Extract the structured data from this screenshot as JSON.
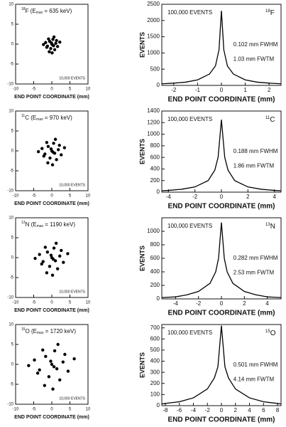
{
  "chart_data": [
    {
      "type": "scatter",
      "title_mass": "18",
      "title_element": "F (E",
      "title_sub": "max",
      "title_rest": " = 635 keV)",
      "events_label": "10,000 EVENTS",
      "xlabel": "END POINT COORDINATE (mm)",
      "x": [
        0,
        0.5,
        -0.6,
        1.1,
        -1.2,
        0.3,
        -0.3,
        1.6,
        -1.7,
        0.8,
        -0.9,
        0.2,
        -0.1,
        1.3,
        -1.4,
        2.2,
        -2.3,
        0.6,
        -0.7,
        0.1
      ],
      "y": [
        0,
        -0.4,
        0.7,
        0.2,
        -0.5,
        1.2,
        -1.1,
        -0.6,
        0.4,
        -1.4,
        1.3,
        -0.2,
        0.3,
        0.9,
        -0.8,
        0.5,
        -0.1,
        1.8,
        -1.9,
        -2.2
      ],
      "xlim": [
        -10,
        10
      ],
      "ylim": [
        -10,
        10
      ],
      "xticks": [
        -10,
        -5,
        0,
        5,
        10
      ],
      "yticks": [
        -10,
        -5,
        0,
        5,
        10
      ],
      "color": "#000000"
    },
    {
      "type": "line",
      "events_label": "100,000 EVENTS",
      "isotope_mass": "18",
      "isotope_element": "F",
      "fwhm": "0.102 mm FWHM",
      "fwtm": "1.03 mm FWTM",
      "xlabel": "END POINT COORDINATE (mm)",
      "ylabel": "EVENTS",
      "x": [
        -2.5,
        -2,
        -1.5,
        -1,
        -0.5,
        -0.25,
        -0.1,
        0,
        0.1,
        0.25,
        0.5,
        1,
        1.5,
        2,
        2.5
      ],
      "values": [
        50,
        70,
        100,
        170,
        350,
        600,
        1100,
        2300,
        1100,
        600,
        350,
        170,
        100,
        70,
        50
      ],
      "xlim": [
        -2.5,
        2.5
      ],
      "ylim": [
        0,
        2500
      ],
      "xticks": [
        -2,
        -1,
        0,
        1,
        2
      ],
      "yticks": [
        0,
        500,
        1000,
        1500,
        2000,
        2500
      ],
      "color": "#000000"
    },
    {
      "type": "scatter",
      "title_mass": "11",
      "title_element": "C (E",
      "title_sub": "max",
      "title_rest": " = 970 keV)",
      "events_label": "10,000 EVENTS",
      "xlabel": "END POINT COORDINATE (mm)",
      "x": [
        0,
        0.8,
        -1,
        1.8,
        -1.9,
        0.5,
        -0.5,
        2.6,
        -2.7,
        1.3,
        -1.4,
        0.3,
        -0.2,
        2.1,
        -2.2,
        3.5,
        -3.7,
        1,
        -1.1,
        0.2
      ],
      "y": [
        0,
        -0.6,
        1.1,
        0.3,
        -0.8,
        1.9,
        -1.8,
        -1,
        0.6,
        -2.2,
        2.1,
        -0.3,
        0.5,
        1.4,
        -1.3,
        0.8,
        -0.2,
        2.9,
        -3,
        -3.5
      ],
      "xlim": [
        -10,
        10
      ],
      "ylim": [
        -10,
        10
      ],
      "xticks": [
        -10,
        -5,
        0,
        5,
        10
      ],
      "yticks": [
        -10,
        -5,
        0,
        5,
        10
      ],
      "color": "#000000"
    },
    {
      "type": "line",
      "events_label": "100,000 EVENTS",
      "isotope_mass": "11",
      "isotope_element": "C",
      "fwhm": "0.188 mm FWHM",
      "fwtm": "1.86 mm FWTM",
      "xlabel": "END POINT COORDINATE (mm)",
      "ylabel": "EVENTS",
      "x": [
        -4.5,
        -4,
        -3,
        -2,
        -1,
        -0.5,
        -0.25,
        0,
        0.25,
        0.5,
        1,
        2,
        3,
        4,
        4.5
      ],
      "values": [
        25,
        30,
        50,
        90,
        200,
        380,
        600,
        1250,
        600,
        380,
        200,
        90,
        50,
        30,
        25
      ],
      "xlim": [
        -4.5,
        4.5
      ],
      "ylim": [
        0,
        1400
      ],
      "xticks": [
        -4,
        -2,
        0,
        2,
        4
      ],
      "yticks": [
        0,
        200,
        400,
        600,
        800,
        1000,
        1200,
        1400
      ],
      "color": "#000000"
    },
    {
      "type": "scatter",
      "title_mass": "13",
      "title_element": "N (E",
      "title_sub": "max",
      "title_rest": " = 1190 keV)",
      "events_label": "10,000 EVENTS",
      "xlabel": "END POINT COORDINATE (mm)",
      "x": [
        0,
        1,
        -1.2,
        2.2,
        -2.4,
        0.6,
        -0.6,
        3.2,
        -3.4,
        1.6,
        -1.8,
        0.4,
        -0.2,
        2.6,
        -2.8,
        4.4,
        -4.6,
        1.2,
        -1.4,
        0.2
      ],
      "y": [
        0,
        -0.8,
        1.4,
        0.4,
        -1,
        2.4,
        -2.2,
        -1.2,
        0.8,
        -2.8,
        2.6,
        -0.4,
        0.6,
        1.8,
        -1.6,
        1,
        -0.2,
        3.6,
        -3.8,
        -4.4
      ],
      "xlim": [
        -10,
        10
      ],
      "ylim": [
        -10,
        10
      ],
      "xticks": [
        -10,
        -5,
        0,
        5,
        10
      ],
      "yticks": [
        -10,
        -5,
        0,
        5,
        10
      ],
      "color": "#000000"
    },
    {
      "type": "line",
      "events_label": "100,000 EVENTS",
      "isotope_mass": "13",
      "isotope_element": "N",
      "fwhm": "0.282 mm FWHM",
      "fwtm": "2.53 mm FWTM",
      "xlabel": "END POINT COORDINATE (mm)",
      "ylabel": "EVENTS",
      "x": [
        -5.2,
        -4,
        -3,
        -2,
        -1,
        -0.5,
        -0.25,
        0,
        0.25,
        0.5,
        1,
        2,
        3,
        4,
        5.2
      ],
      "values": [
        20,
        30,
        60,
        110,
        230,
        400,
        600,
        1130,
        600,
        400,
        230,
        110,
        60,
        30,
        20
      ],
      "xlim": [
        -5.2,
        5.2
      ],
      "ylim": [
        0,
        1200
      ],
      "xticks": [
        -4,
        -2,
        0,
        2,
        4
      ],
      "yticks": [
        0,
        200,
        400,
        600,
        800,
        1000
      ],
      "color": "#000000"
    },
    {
      "type": "scatter",
      "title_mass": "15",
      "title_element": "O (E",
      "title_sub": "max",
      "title_rest": " = 1720 keV)",
      "events_label": "10,000 EVENTS",
      "xlabel": "END POINT COORDINATE (mm)",
      "x": [
        0,
        1.4,
        -1.7,
        3.1,
        -3.4,
        0.8,
        -0.8,
        4.5,
        -4.8,
        2.2,
        -2.5,
        0.6,
        -0.3,
        3.6,
        -3.9,
        6.2,
        -6.4,
        1.7,
        -2,
        0.3
      ],
      "y": [
        0,
        -1.1,
        2,
        0.6,
        -1.4,
        3.4,
        -3.1,
        -1.7,
        1.1,
        -3.9,
        3.6,
        -0.6,
        0.8,
        2.5,
        -2.2,
        1.4,
        -0.3,
        5,
        -5.3,
        -6.2
      ],
      "xlim": [
        -10,
        10
      ],
      "ylim": [
        -10,
        10
      ],
      "xticks": [
        -10,
        -5,
        0,
        5,
        10
      ],
      "yticks": [
        -10,
        -5,
        0,
        5,
        10
      ],
      "color": "#000000"
    },
    {
      "type": "line",
      "events_label": "100,000 EVENTS",
      "isotope_mass": "15",
      "isotope_element": "O",
      "fwhm": "0.501 mm FWHM",
      "fwtm": "4.14 mm FWTM",
      "xlabel": "END POINT COORDINATE (mm)",
      "ylabel": "EVENTS",
      "x": [
        -8.5,
        -8,
        -6,
        -4,
        -2,
        -1,
        -0.5,
        0,
        0.5,
        1,
        2,
        4,
        6,
        8,
        8.5
      ],
      "values": [
        15,
        20,
        35,
        70,
        150,
        250,
        350,
        720,
        350,
        250,
        150,
        70,
        35,
        20,
        15
      ],
      "xlim": [
        -8.5,
        8.5
      ],
      "ylim": [
        0,
        730
      ],
      "xticks": [
        -8,
        -6,
        -4,
        -2,
        0,
        2,
        4,
        6,
        8
      ],
      "yticks": [
        0,
        100,
        200,
        300,
        400,
        500,
        600,
        700
      ],
      "color": "#000000"
    }
  ]
}
